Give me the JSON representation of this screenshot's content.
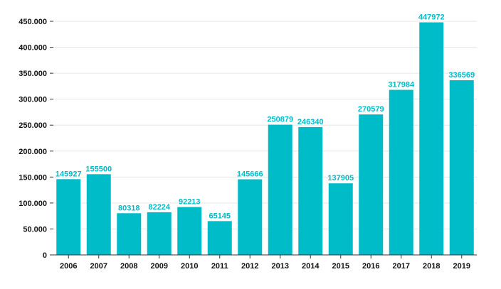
{
  "chart_data": {
    "type": "bar",
    "title": "",
    "xlabel": "",
    "ylabel": "",
    "categories": [
      "2006",
      "2007",
      "2008",
      "2009",
      "2010",
      "2011",
      "2012",
      "2013",
      "2014",
      "2015",
      "2016",
      "2017",
      "2018",
      "2019"
    ],
    "values": [
      145927,
      155500,
      80318,
      82224,
      92213,
      65145,
      145666,
      250879,
      246340,
      137905,
      270579,
      317984,
      447972,
      336569
    ],
    "ylim": [
      0,
      450000
    ],
    "yticks": [
      0,
      50000,
      100000,
      150000,
      200000,
      250000,
      300000,
      350000,
      400000,
      450000
    ],
    "ytick_labels": [
      "0",
      "50.000",
      "100.000",
      "150.000",
      "200.000",
      "250.000",
      "300.000",
      "350.000",
      "400.000",
      "450.000"
    ],
    "grid": true,
    "legend": "none",
    "colors": {
      "bar": "#00BCC8",
      "label": "#00BCC8",
      "grid": "#e6e6e6",
      "axis": "#333333"
    }
  }
}
